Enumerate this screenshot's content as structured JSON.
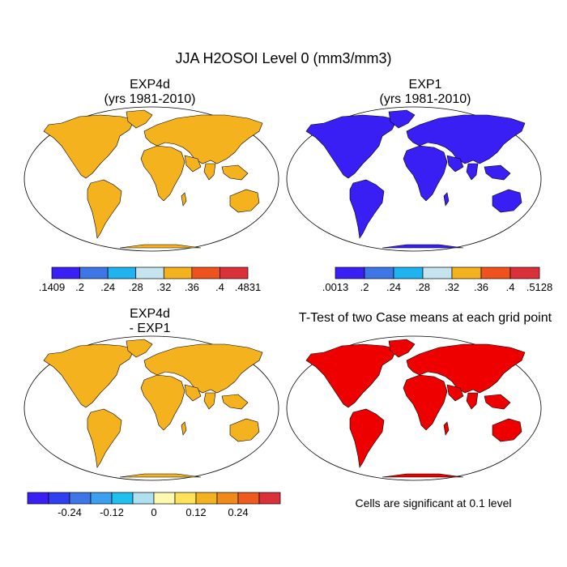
{
  "main_title": "JJA H2OSOI Level 0 (mm3/mm3)",
  "chart_data": [
    {
      "type": "heatmap",
      "projection": "Robinson world map",
      "title_line1": "EXP4d",
      "title_line2": "(yrs 1981-2010)",
      "field_range": [
        0.1409,
        0.4831
      ],
      "colorbar": {
        "colors": [
          "#3a1ff4",
          "#3f76e6",
          "#1fb3ef",
          "#c5e4ef",
          "#f5b21f",
          "#f0521d",
          "#d9303a"
        ],
        "tick_labels": [
          ".1409",
          ".2",
          ".24",
          ".28",
          ".32",
          ".36",
          ".4",
          ".4831"
        ]
      }
    },
    {
      "type": "heatmap",
      "projection": "Robinson world map",
      "title_line1": "EXP1",
      "title_line2": "(yrs 1981-2010)",
      "field_range": [
        0.0013,
        0.5128
      ],
      "colorbar": {
        "colors": [
          "#3a1ff4",
          "#3f76e6",
          "#1fb3ef",
          "#c5e4ef",
          "#f5b21f",
          "#f0521d",
          "#d9303a"
        ],
        "tick_labels": [
          ".0013",
          ".2",
          ".24",
          ".28",
          ".32",
          ".36",
          ".4",
          ".5128"
        ]
      }
    },
    {
      "type": "heatmap",
      "projection": "Robinson world map",
      "title_line1": "EXP4d",
      "title_line2": "- EXP1",
      "colorbar": {
        "colors": [
          "#3a1ff4",
          "#2f3ff0",
          "#3f76e6",
          "#3c9ff0",
          "#1fc0ef",
          "#aee0f0",
          "#fff8b0",
          "#fde25a",
          "#f5b21f",
          "#f08a1a",
          "#ef5b1d",
          "#d9303a"
        ],
        "tick_labels": [
          "-0.24",
          "-0.12",
          "0",
          "0.12",
          "0.24"
        ],
        "tick_values": [
          -0.24,
          -0.12,
          0,
          0.12,
          0.24
        ],
        "range": [
          -0.36,
          0.36
        ]
      }
    },
    {
      "type": "heatmap",
      "projection": "Robinson world map",
      "title": "T-Test of two Case means at each grid point",
      "note": "Cells are significant at 0.1 level",
      "significant_color": "#ff0000"
    }
  ],
  "colors": {
    "panel1_dominant": "#f5b21f",
    "panel2_dominant": "#3a1ff4",
    "panel3_dominant": "#f5b21f",
    "panel4_dominant": "#ee0000",
    "ocean": "#ffffff",
    "outline": "#000000"
  }
}
